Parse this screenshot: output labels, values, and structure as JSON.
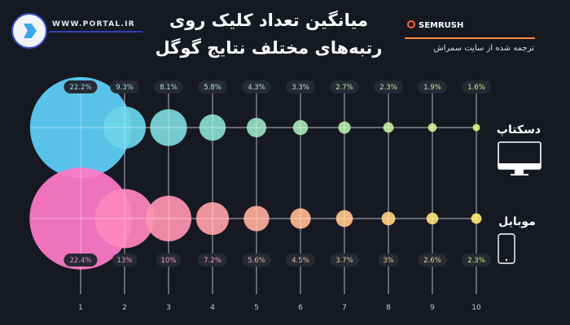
{
  "header": {
    "site": "WWW.PORTAL.IR",
    "title_line1": "میانگین تعداد کلیک روی",
    "title_line2": "رتبه‌های مختلف نتایج گوگل",
    "brand": "SEMRUSH",
    "translated_note": "ترجمه شده از سایت سمراش",
    "accent_color": "#ff8a3d"
  },
  "chart_data": {
    "type": "bubble",
    "categories": [
      "1",
      "2",
      "3",
      "4",
      "5",
      "6",
      "7",
      "8",
      "9",
      "10"
    ],
    "series": [
      {
        "name": "دسکتاپ",
        "icon": "desktop-monitor-icon",
        "values": [
          22.2,
          9.3,
          8.1,
          5.8,
          4.3,
          3.3,
          2.7,
          2.3,
          1.9,
          1.6
        ],
        "labels": [
          "22.2%",
          "9.3%",
          "8.1%",
          "5.8%",
          "4.3%",
          "3.3%",
          "2.7%",
          "2.3%",
          "1.9%",
          "1.6%"
        ],
        "colors": [
          "#5fd0f7",
          "#d8f27a"
        ]
      },
      {
        "name": "موبایل",
        "icon": "mobile-phone-icon",
        "values": [
          22.4,
          13,
          10,
          7.2,
          5.6,
          4.5,
          3.7,
          3,
          2.6,
          2.3
        ],
        "labels": [
          "22.4%",
          "13%",
          "10%",
          "7.2%",
          "5.6%",
          "4.5%",
          "3.7%",
          "3%",
          "2.6%",
          "2.3%"
        ],
        "colors": [
          "#ff7ac8",
          "#fbe862"
        ]
      }
    ],
    "grid": true
  }
}
